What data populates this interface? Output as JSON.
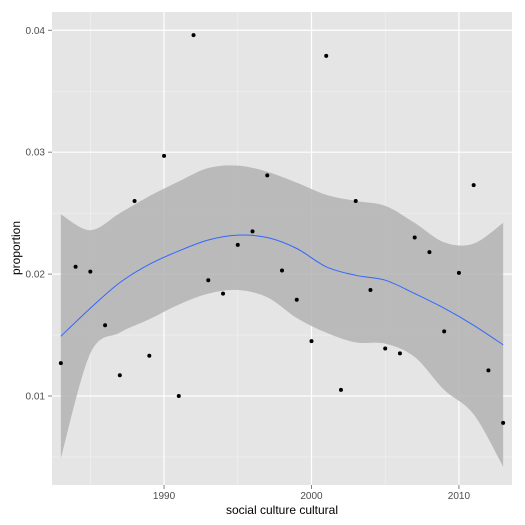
{
  "chart_data": {
    "type": "scatter",
    "title": "",
    "xlabel": "social culture cultural",
    "ylabel": "proportion",
    "xlim": [
      1982.4,
      2013.6
    ],
    "ylim": [
      0.0027,
      0.0415
    ],
    "xticks": [
      1990,
      2000,
      2010
    ],
    "xtick_labels": [
      "1990",
      "2000",
      "2010"
    ],
    "yticks": [
      0.01,
      0.02,
      0.03,
      0.04
    ],
    "ytick_labels": [
      "0.01",
      "0.02",
      "0.03",
      "0.04"
    ],
    "grid": true,
    "legend": "none",
    "colors": {
      "panel": "#e5e5e5",
      "grid_major": "#ffffff",
      "point": "#000000",
      "smooth_line": "#3366ff",
      "ribbon": "#b3b3b3"
    },
    "points": {
      "x": [
        1983,
        1984,
        1985,
        1986,
        1987,
        1988,
        1989,
        1990,
        1991,
        1992,
        1993,
        1994,
        1995,
        1996,
        1997,
        1998,
        1999,
        2000,
        2001,
        2002,
        2003,
        2004,
        2005,
        2006,
        2007,
        2008,
        2009,
        2010,
        2011,
        2012,
        2013
      ],
      "y": [
        0.0127,
        0.0206,
        0.0202,
        0.0158,
        0.0117,
        0.026,
        0.0133,
        0.0297,
        0.01,
        0.0396,
        0.0195,
        0.0184,
        0.0224,
        0.0235,
        0.0281,
        0.0203,
        0.0179,
        0.0145,
        0.0379,
        0.0105,
        0.026,
        0.0187,
        0.0139,
        0.0135,
        0.023,
        0.0218,
        0.0153,
        0.0201,
        0.0273,
        0.0121,
        0.0078
      ]
    },
    "smooth": {
      "x": [
        1983,
        1985,
        1987,
        1989,
        1991,
        1993,
        1995,
        1997,
        1999,
        2001,
        2003,
        2005,
        2007,
        2009,
        2011,
        2013
      ],
      "y": [
        0.0149,
        0.0172,
        0.0193,
        0.0208,
        0.0219,
        0.0228,
        0.0232,
        0.023,
        0.0221,
        0.0206,
        0.0199,
        0.0195,
        0.0184,
        0.0172,
        0.0158,
        0.0142
      ],
      "lower": [
        0.0049,
        0.0135,
        0.0152,
        0.0163,
        0.0175,
        0.0184,
        0.0187,
        0.0181,
        0.0164,
        0.0152,
        0.0144,
        0.0143,
        0.0132,
        0.0105,
        0.0085,
        0.0042
      ],
      "upper": [
        0.0249,
        0.0236,
        0.025,
        0.0264,
        0.0276,
        0.0287,
        0.0289,
        0.0284,
        0.0275,
        0.0265,
        0.026,
        0.0256,
        0.0242,
        0.0226,
        0.0225,
        0.0242
      ]
    }
  }
}
